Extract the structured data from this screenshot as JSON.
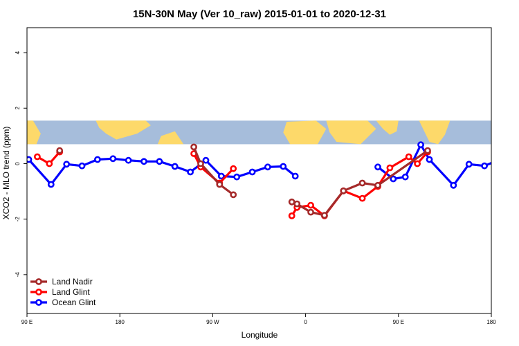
{
  "chart_data": {
    "type": "line",
    "title": "15N-30N May (Ver 10_raw)   2015-01-01 to 2020-12-31",
    "xlabel": "Longitude",
    "ylabel": "XCO2 - MLO trend (ppm)",
    "xlim": [
      -90,
      180
    ],
    "ylim": [
      -5.4,
      4.9
    ],
    "x_ticks": [
      {
        "value": -90,
        "label": "90 E"
      },
      {
        "value": -36,
        "label": "180"
      },
      {
        "value": 18,
        "label": "90 W"
      },
      {
        "value": 72,
        "label": "0"
      },
      {
        "value": 126,
        "label": "90 E"
      },
      {
        "value": 180,
        "label": "180"
      }
    ],
    "y_ticks": [
      {
        "value": -4,
        "label": "-4"
      },
      {
        "value": -2,
        "label": "-2"
      },
      {
        "value": 0,
        "label": "0"
      },
      {
        "value": 2,
        "label": "2"
      },
      {
        "value": 4,
        "label": "4"
      }
    ],
    "map_band": {
      "y_bottom": 0.7,
      "y_top": 1.55,
      "ocean_color": "#a6bddb",
      "land_color": "#fdd96a"
    },
    "grid": false,
    "legend_position": "bottom-left",
    "series": [
      {
        "name": "Ocean Glint",
        "color": "#0000ff",
        "segments": [
          [
            [
              -89,
              0.15
            ],
            [
              -76,
              -0.75
            ],
            [
              -67,
              -0.02
            ],
            [
              -58,
              -0.08
            ],
            [
              -49,
              0.15
            ],
            [
              -40,
              0.18
            ],
            [
              -31,
              0.12
            ],
            [
              -22,
              0.08
            ],
            [
              -13,
              0.08
            ],
            [
              -4,
              -0.1
            ],
            [
              5,
              -0.3
            ],
            [
              14,
              0.12
            ],
            [
              23,
              -0.45
            ],
            [
              32,
              -0.48
            ],
            [
              41,
              -0.3
            ],
            [
              50,
              -0.12
            ],
            [
              59,
              -0.1
            ],
            [
              66,
              -0.45
            ]
          ],
          [
            [
              114,
              -0.12
            ],
            [
              123,
              -0.55
            ],
            [
              130,
              -0.48
            ],
            [
              139,
              0.68
            ],
            [
              144,
              0.15
            ],
            [
              158,
              -0.78
            ],
            [
              167,
              -0.02
            ],
            [
              176,
              -0.08
            ],
            [
              185,
              0.15
            ],
            [
              194,
              0.18
            ]
          ]
        ]
      },
      {
        "name": "Land Glint",
        "color": "#ff0000",
        "segments": [
          [
            [
              -84,
              0.25
            ],
            [
              -77,
              0.0
            ],
            [
              -71,
              0.42
            ]
          ],
          [
            [
              7,
              0.36
            ],
            [
              11,
              -0.12
            ],
            [
              22,
              -0.7
            ],
            [
              30,
              -0.18
            ]
          ],
          [
            [
              64,
              -1.88
            ],
            [
              67,
              -1.58
            ],
            [
              75,
              -1.5
            ],
            [
              83,
              -1.88
            ],
            [
              94,
              -0.98
            ],
            [
              105,
              -1.25
            ],
            [
              114,
              -0.82
            ],
            [
              121,
              -0.15
            ],
            [
              132,
              0.25
            ],
            [
              137,
              0.0
            ],
            [
              143,
              0.42
            ]
          ]
        ]
      },
      {
        "name": "Land Nadir",
        "color": "#a52a2a",
        "segments": [
          [
            [
              -71,
              0.47
            ]
          ],
          [
            [
              7,
              0.6
            ],
            [
              11,
              0.0
            ],
            [
              22,
              -0.75
            ],
            [
              30,
              -1.12
            ]
          ],
          [
            [
              64,
              -1.38
            ],
            [
              67,
              -1.45
            ],
            [
              75,
              -1.75
            ],
            [
              83,
              -1.86
            ],
            [
              94,
              -0.98
            ],
            [
              105,
              -0.7
            ],
            [
              114,
              -0.78
            ],
            [
              143,
              0.47
            ]
          ]
        ]
      }
    ],
    "legend_order": [
      "Land Nadir",
      "Land Glint",
      "Ocean Glint"
    ]
  }
}
